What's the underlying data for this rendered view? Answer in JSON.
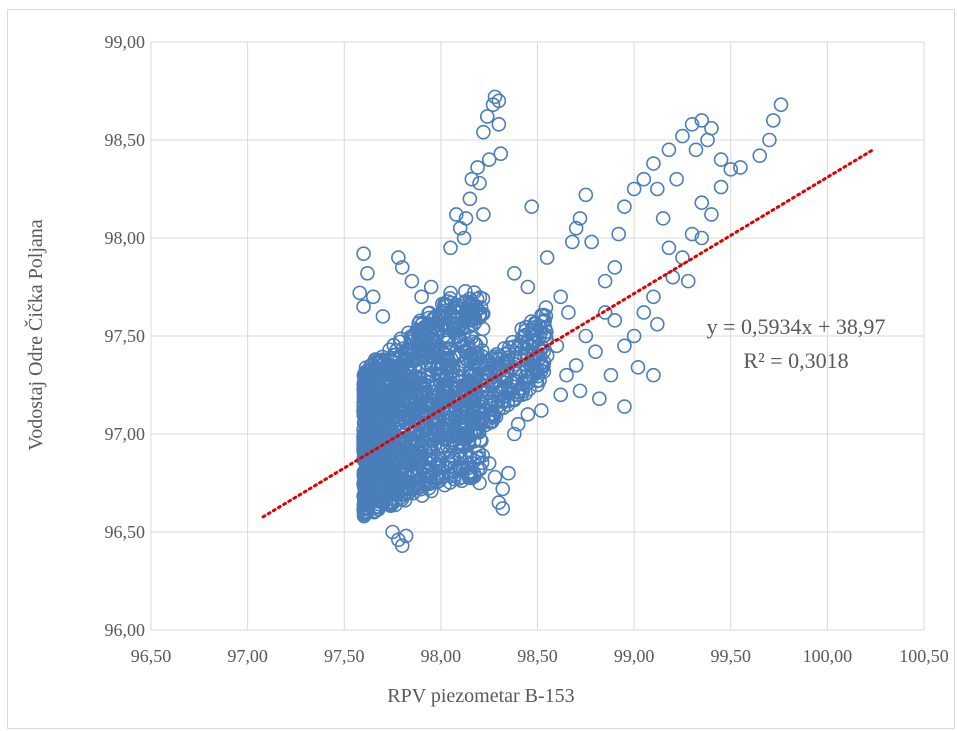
{
  "chart_data": {
    "type": "scatter",
    "title": "",
    "xlabel": "RPV piezometar B-153",
    "ylabel": "Vodostaj Odre Čička Poljana",
    "xlim": [
      96.5,
      100.5
    ],
    "ylim": [
      96.0,
      99.0
    ],
    "x_ticks": [
      "96,50",
      "97,00",
      "97,50",
      "98,00",
      "98,50",
      "99,00",
      "99,50",
      "100,00",
      "100,50"
    ],
    "y_ticks": [
      "96,00",
      "96,50",
      "97,00",
      "97,50",
      "98,00",
      "98,50",
      "99,00"
    ],
    "grid": "vertical and horizontal",
    "legend": "none",
    "marker": "open circle",
    "colors": {
      "points": "#4a7ebb",
      "trendline": "#e00000",
      "grid": "#d9d9d9",
      "text": "#595959"
    },
    "trendline": {
      "slope": 0.5934,
      "intercept": 38.97,
      "x_range": [
        97.08,
        100.24
      ],
      "style": "dotted",
      "equation": "y = 0,5934x + 38,97",
      "r2": "R² = 0,3018"
    },
    "series": [
      {
        "points": [
          [
            98.28,
            98.72
          ],
          [
            98.3,
            98.7
          ],
          [
            98.27,
            98.68
          ],
          [
            98.24,
            98.62
          ],
          [
            98.3,
            98.58
          ],
          [
            98.31,
            98.43
          ],
          [
            98.25,
            98.4
          ],
          [
            98.22,
            98.54
          ],
          [
            98.19,
            98.36
          ],
          [
            98.16,
            98.3
          ],
          [
            98.2,
            98.28
          ],
          [
            98.13,
            98.1
          ],
          [
            98.1,
            98.05
          ],
          [
            98.22,
            98.12
          ],
          [
            98.15,
            98.2
          ],
          [
            98.12,
            98.0
          ],
          [
            98.05,
            97.95
          ],
          [
            98.08,
            98.12
          ],
          [
            98.47,
            98.16
          ],
          [
            98.38,
            97.82
          ],
          [
            98.45,
            97.75
          ],
          [
            98.55,
            97.9
          ],
          [
            98.66,
            97.62
          ],
          [
            98.62,
            97.7
          ],
          [
            98.68,
            97.98
          ],
          [
            98.72,
            98.1
          ],
          [
            98.75,
            98.22
          ],
          [
            98.7,
            98.05
          ],
          [
            98.78,
            97.98
          ],
          [
            98.85,
            97.78
          ],
          [
            98.9,
            97.85
          ],
          [
            98.92,
            98.02
          ],
          [
            98.95,
            98.16
          ],
          [
            99.0,
            98.25
          ],
          [
            99.05,
            98.3
          ],
          [
            99.1,
            98.38
          ],
          [
            99.12,
            98.25
          ],
          [
            99.15,
            98.1
          ],
          [
            99.18,
            98.45
          ],
          [
            99.22,
            98.3
          ],
          [
            99.25,
            98.52
          ],
          [
            99.3,
            98.58
          ],
          [
            99.32,
            98.45
          ],
          [
            99.35,
            98.6
          ],
          [
            99.38,
            98.5
          ],
          [
            99.4,
            98.56
          ],
          [
            99.45,
            98.4
          ],
          [
            99.5,
            98.35
          ],
          [
            99.55,
            98.36
          ],
          [
            99.65,
            98.42
          ],
          [
            99.7,
            98.5
          ],
          [
            99.72,
            98.6
          ],
          [
            99.76,
            98.68
          ],
          [
            99.45,
            98.26
          ],
          [
            99.35,
            98.18
          ],
          [
            99.3,
            98.02
          ],
          [
            99.25,
            97.9
          ],
          [
            99.2,
            97.8
          ],
          [
            99.18,
            97.95
          ],
          [
            99.1,
            97.7
          ],
          [
            99.05,
            97.62
          ],
          [
            99.0,
            97.5
          ],
          [
            98.95,
            97.45
          ],
          [
            98.9,
            97.58
          ],
          [
            98.85,
            97.62
          ],
          [
            98.8,
            97.42
          ],
          [
            98.75,
            97.5
          ],
          [
            98.7,
            97.35
          ],
          [
            98.65,
            97.3
          ],
          [
            98.6,
            97.45
          ],
          [
            98.55,
            97.4
          ],
          [
            98.5,
            97.25
          ],
          [
            98.45,
            97.3
          ],
          [
            98.4,
            97.2
          ],
          [
            98.52,
            97.12
          ],
          [
            98.62,
            97.2
          ],
          [
            98.72,
            97.22
          ],
          [
            98.82,
            97.18
          ],
          [
            98.88,
            97.3
          ],
          [
            98.95,
            97.14
          ],
          [
            99.02,
            97.34
          ],
          [
            99.1,
            97.3
          ],
          [
            99.12,
            97.56
          ],
          [
            99.35,
            98.0
          ],
          [
            99.4,
            98.12
          ],
          [
            99.28,
            97.78
          ],
          [
            98.35,
            96.8
          ],
          [
            98.32,
            96.72
          ],
          [
            98.3,
            96.65
          ],
          [
            98.28,
            96.78
          ],
          [
            98.25,
            96.85
          ],
          [
            98.32,
            96.62
          ],
          [
            98.2,
            96.75
          ],
          [
            98.4,
            97.05
          ],
          [
            98.45,
            97.1
          ],
          [
            98.38,
            97.0
          ],
          [
            97.8,
            96.43
          ],
          [
            97.78,
            96.46
          ],
          [
            97.75,
            96.5
          ],
          [
            97.82,
            96.48
          ],
          [
            97.6,
            97.92
          ],
          [
            97.62,
            97.82
          ],
          [
            97.78,
            97.9
          ],
          [
            97.8,
            97.85
          ],
          [
            97.85,
            97.78
          ],
          [
            97.9,
            97.7
          ],
          [
            97.95,
            97.75
          ],
          [
            98.0,
            97.6
          ],
          [
            98.05,
            97.72
          ],
          [
            98.1,
            97.55
          ],
          [
            98.18,
            97.65
          ],
          [
            98.12,
            97.45
          ],
          [
            97.65,
            97.7
          ],
          [
            97.7,
            97.6
          ],
          [
            97.58,
            97.72
          ],
          [
            97.6,
            97.65
          ]
        ]
      }
    ]
  }
}
